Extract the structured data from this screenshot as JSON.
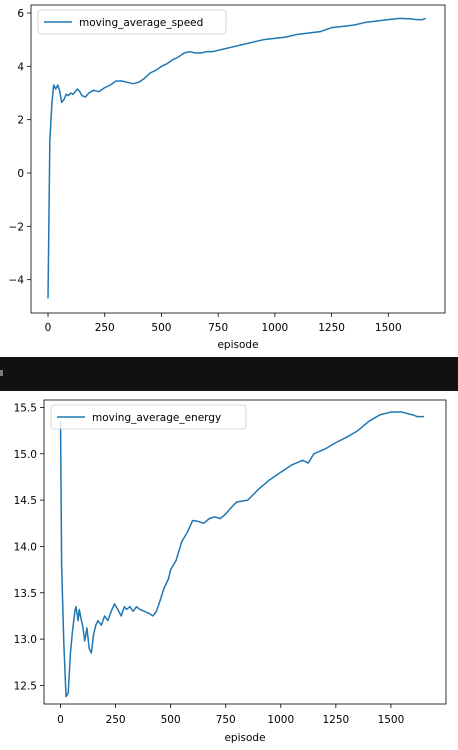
{
  "chart_data": [
    {
      "type": "line",
      "xlabel": "episode",
      "ylabel": "",
      "title": "",
      "xlim": [
        -75,
        1750
      ],
      "ylim": [
        -5.25,
        6.3
      ],
      "xticks": [
        0,
        250,
        500,
        750,
        1000,
        1250,
        1500
      ],
      "yticks": [
        -4,
        -2,
        0,
        2,
        4,
        6
      ],
      "ytick_labels": [
        "−4",
        "−2",
        "0",
        "2",
        "4",
        "6"
      ],
      "legend_position": "top-left",
      "grid": false,
      "color": "#1f77b4",
      "series": [
        {
          "name": "moving_average_speed",
          "x": [
            0,
            8,
            17,
            25,
            34,
            43,
            52,
            60,
            70,
            80,
            90,
            100,
            110,
            120,
            130,
            140,
            150,
            165,
            180,
            200,
            225,
            250,
            275,
            300,
            325,
            350,
            375,
            400,
            425,
            450,
            475,
            500,
            525,
            550,
            575,
            600,
            625,
            650,
            675,
            700,
            725,
            750,
            775,
            800,
            850,
            900,
            950,
            1000,
            1050,
            1100,
            1150,
            1200,
            1250,
            1300,
            1350,
            1400,
            1450,
            1500,
            1550,
            1600,
            1625,
            1650,
            1665
          ],
          "y": [
            -4.7,
            1.2,
            2.6,
            3.3,
            3.15,
            3.3,
            3.05,
            2.65,
            2.75,
            2.95,
            2.9,
            3.0,
            2.95,
            3.05,
            3.15,
            3.05,
            2.9,
            2.85,
            3.0,
            3.1,
            3.05,
            3.2,
            3.3,
            3.45,
            3.45,
            3.4,
            3.35,
            3.4,
            3.55,
            3.75,
            3.85,
            4.0,
            4.1,
            4.25,
            4.35,
            4.5,
            4.55,
            4.5,
            4.5,
            4.55,
            4.55,
            4.6,
            4.65,
            4.7,
            4.8,
            4.9,
            5.0,
            5.05,
            5.1,
            5.2,
            5.25,
            5.3,
            5.45,
            5.5,
            5.55,
            5.65,
            5.7,
            5.75,
            5.8,
            5.78,
            5.75,
            5.75,
            5.8
          ]
        }
      ]
    },
    {
      "type": "line",
      "xlabel": "episode",
      "ylabel": "",
      "title": "",
      "xlim": [
        -75,
        1750
      ],
      "ylim": [
        12.3,
        15.58
      ],
      "xticks": [
        0,
        250,
        500,
        750,
        1000,
        1250,
        1500
      ],
      "yticks": [
        12.5,
        13.0,
        13.5,
        14.0,
        14.5,
        15.0,
        15.5
      ],
      "ytick_labels": [
        "12.5",
        "13.0",
        "13.5",
        "14.0",
        "14.5",
        "15.0",
        "15.5"
      ],
      "legend_position": "top-left",
      "grid": false,
      "color": "#1f77b4",
      "series": [
        {
          "name": "moving_average_energy",
          "x": [
            0,
            5,
            15,
            25,
            35,
            45,
            55,
            65,
            70,
            80,
            85,
            95,
            100,
            110,
            120,
            130,
            140,
            150,
            160,
            170,
            185,
            200,
            215,
            230,
            245,
            260,
            275,
            290,
            300,
            315,
            330,
            345,
            360,
            380,
            400,
            420,
            435,
            450,
            470,
            490,
            500,
            525,
            550,
            575,
            600,
            625,
            650,
            675,
            700,
            725,
            750,
            775,
            800,
            850,
            900,
            950,
            1000,
            1050,
            1100,
            1125,
            1150,
            1200,
            1250,
            1300,
            1350,
            1400,
            1450,
            1500,
            1550,
            1580,
            1600,
            1620,
            1640,
            1650
          ],
          "y": [
            15.35,
            13.8,
            12.95,
            12.38,
            12.42,
            12.85,
            13.1,
            13.3,
            13.35,
            13.2,
            13.32,
            13.2,
            13.15,
            12.98,
            13.12,
            12.9,
            12.85,
            13.05,
            13.15,
            13.2,
            13.15,
            13.25,
            13.2,
            13.3,
            13.38,
            13.32,
            13.25,
            13.35,
            13.32,
            13.35,
            13.3,
            13.35,
            13.32,
            13.3,
            13.28,
            13.25,
            13.3,
            13.4,
            13.55,
            13.65,
            13.75,
            13.85,
            14.05,
            14.15,
            14.28,
            14.27,
            14.25,
            14.3,
            14.32,
            14.3,
            14.35,
            14.42,
            14.48,
            14.5,
            14.62,
            14.72,
            14.8,
            14.88,
            14.93,
            14.9,
            15.0,
            15.05,
            15.12,
            15.18,
            15.25,
            15.35,
            15.42,
            15.45,
            15.45,
            15.43,
            15.42,
            15.4,
            15.4,
            15.4
          ]
        }
      ]
    }
  ]
}
